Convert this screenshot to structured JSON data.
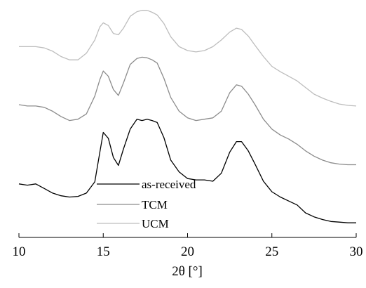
{
  "chart_data": {
    "type": "line",
    "title": "",
    "xlabel": "2θ [°]",
    "ylabel": "",
    "xlim": [
      10,
      30
    ],
    "x_ticks": [
      10,
      15,
      20,
      25,
      30
    ],
    "y_axis_visible": false,
    "grid": false,
    "legend": {
      "position": "bottom-left"
    },
    "series": [
      {
        "name": "as-received",
        "color": "#000000",
        "x": [
          10,
          10.5,
          11,
          11.5,
          12,
          12.5,
          13,
          13.5,
          14,
          14.5,
          14.8,
          15.0,
          15.3,
          15.6,
          15.9,
          16.2,
          16.6,
          17.0,
          17.3,
          17.6,
          17.9,
          18.2,
          18.6,
          19.0,
          19.5,
          20.0,
          20.5,
          21.0,
          21.5,
          22.0,
          22.5,
          22.9,
          23.2,
          23.6,
          24.0,
          24.5,
          25.0,
          25.5,
          26.0,
          26.5,
          27.0,
          27.5,
          28.0,
          28.5,
          29.0,
          29.5,
          30.0
        ],
        "y": [
          62,
          60,
          62,
          55,
          48,
          44,
          42,
          43,
          48,
          65,
          110,
          140,
          131,
          102,
          90,
          115,
          145,
          160,
          158,
          160,
          158,
          155,
          132,
          98,
          80,
          70,
          68,
          68,
          66,
          78,
          110,
          126,
          126,
          112,
          92,
          66,
          50,
          42,
          36,
          30,
          18,
          12,
          8,
          5,
          4,
          3,
          3
        ]
      },
      {
        "name": "TCM",
        "color": "#8c8c8c",
        "x": [
          10,
          10.5,
          11,
          11.5,
          12,
          12.5,
          13,
          13.5,
          14,
          14.5,
          14.8,
          15.0,
          15.3,
          15.6,
          15.9,
          16.2,
          16.6,
          17.0,
          17.3,
          17.6,
          17.9,
          18.2,
          18.6,
          19.0,
          19.5,
          20.0,
          20.5,
          21.0,
          21.5,
          22.0,
          22.5,
          22.9,
          23.2,
          23.6,
          24.0,
          24.5,
          25.0,
          25.5,
          26.0,
          26.5,
          27.0,
          27.5,
          28.0,
          28.5,
          29.0,
          29.5,
          30.0
        ],
        "y": [
          182,
          180,
          180,
          178,
          172,
          164,
          158,
          160,
          168,
          195,
          220,
          233,
          225,
          205,
          196,
          215,
          243,
          252,
          254,
          253,
          250,
          245,
          222,
          193,
          172,
          162,
          158,
          160,
          162,
          172,
          200,
          212,
          210,
          198,
          182,
          160,
          145,
          136,
          130,
          122,
          112,
          104,
          98,
          94,
          92,
          91,
          91
        ]
      },
      {
        "name": "UCM",
        "color": "#bdbdbd",
        "x": [
          10,
          10.5,
          11,
          11.5,
          12,
          12.5,
          13,
          13.5,
          14,
          14.5,
          14.8,
          15.0,
          15.3,
          15.6,
          15.9,
          16.2,
          16.6,
          17.0,
          17.3,
          17.6,
          17.9,
          18.2,
          18.6,
          19.0,
          19.5,
          20.0,
          20.5,
          21.0,
          21.5,
          22.0,
          22.5,
          22.9,
          23.2,
          23.6,
          24.0,
          24.5,
          25.0,
          25.5,
          26.0,
          26.5,
          27.0,
          27.5,
          28.0,
          28.5,
          29.0,
          29.5,
          30.0
        ],
        "y": [
          270,
          270,
          270,
          268,
          263,
          255,
          250,
          250,
          260,
          280,
          300,
          306,
          302,
          290,
          288,
          298,
          316,
          323,
          325,
          325,
          322,
          318,
          305,
          285,
          270,
          264,
          262,
          264,
          270,
          280,
          292,
          298,
          296,
          286,
          272,
          255,
          240,
          232,
          225,
          218,
          208,
          198,
          192,
          187,
          183,
          181,
          180
        ]
      }
    ]
  }
}
